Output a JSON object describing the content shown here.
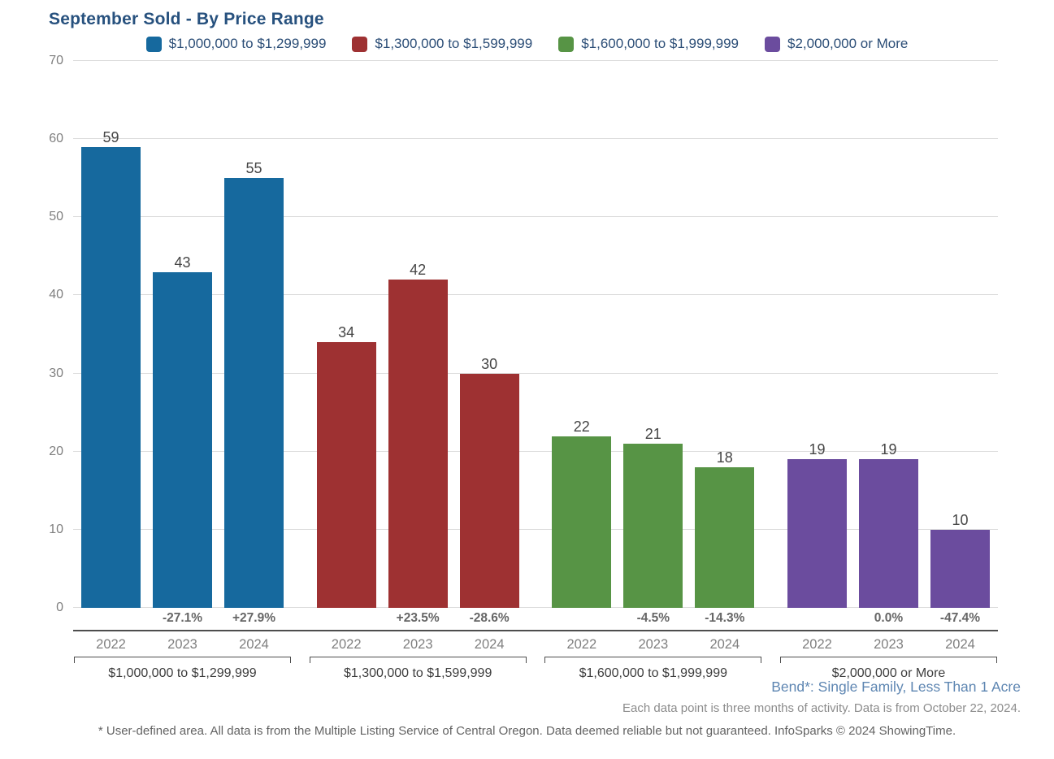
{
  "title": "September Sold - By Price Range",
  "legend": {
    "items": [
      {
        "label": "$1,000,000 to $1,299,999",
        "color": "#16699e"
      },
      {
        "label": "$1,300,000 to $1,599,999",
        "color": "#9e3132"
      },
      {
        "label": "$1,600,000 to $1,999,999",
        "color": "#579445"
      },
      {
        "label": "$2,000,000 or More",
        "color": "#6b4c9e"
      }
    ]
  },
  "chart_data": {
    "type": "bar",
    "title": "September Sold - By Price Range",
    "xlabel": "",
    "ylabel": "",
    "ylim": [
      0,
      70
    ],
    "yticks": [
      0,
      10,
      20,
      30,
      40,
      50,
      60,
      70
    ],
    "grid": true,
    "legend_position": "top",
    "categories": [
      "2022",
      "2023",
      "2024"
    ],
    "groups": [
      {
        "label": "$1,000,000 to $1,299,999",
        "color": "#16699e",
        "values": [
          59,
          43,
          55
        ],
        "pct_change": [
          "",
          "-27.1%",
          "+27.9%"
        ]
      },
      {
        "label": "$1,300,000 to $1,599,999",
        "color": "#9e3132",
        "values": [
          34,
          42,
          30
        ],
        "pct_change": [
          "",
          "+23.5%",
          "-28.6%"
        ]
      },
      {
        "label": "$1,600,000 to $1,999,999",
        "color": "#579445",
        "values": [
          22,
          21,
          18
        ],
        "pct_change": [
          "",
          "-4.5%",
          "-14.3%"
        ]
      },
      {
        "label": "$2,000,000 or More",
        "color": "#6b4c9e",
        "values": [
          19,
          19,
          10
        ],
        "pct_change": [
          "",
          "0.0%",
          "-47.4%"
        ]
      }
    ]
  },
  "footnotes": {
    "area": "Bend*: Single Family, Less Than 1 Acre",
    "data_note": "Each data point is three months of activity. Data is from October 22, 2024.",
    "disclaimer": "* User-defined area. All data is from the Multiple Listing Service of Central Oregon. Data deemed reliable but not guaranteed. InfoSparks © 2024 ShowingTime."
  }
}
